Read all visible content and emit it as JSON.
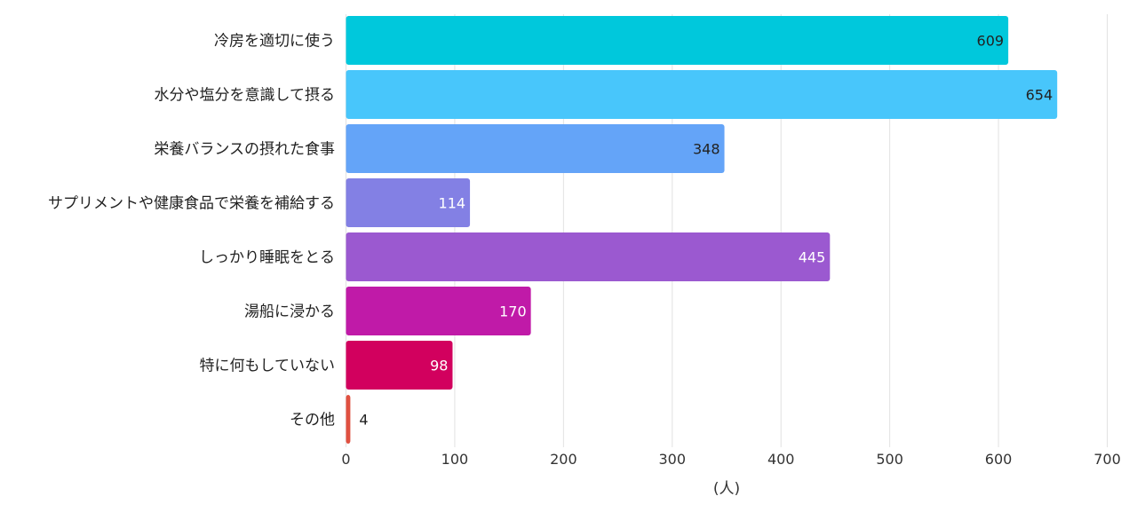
{
  "chart_data": {
    "type": "bar",
    "orientation": "horizontal",
    "categories": [
      "冷房を適切に使う",
      "水分や塩分を意識して摂る",
      "栄養バランスの摂れた食事",
      "サプリメントや健康食品で栄養を補給する",
      "しっかり睡眠をとる",
      "湯船に浸かる",
      "特に何もしていない",
      "その他"
    ],
    "values": [
      609,
      654,
      348,
      114,
      445,
      170,
      98,
      4
    ],
    "colors": [
      "#00c8dc",
      "#48c6fb",
      "#64a4f8",
      "#8380e4",
      "#9b59d0",
      "#c01aa8",
      "#d2005e",
      "#e05040"
    ],
    "value_label_colors": [
      "#222222",
      "#222222",
      "#222222",
      "#ffffff",
      "#ffffff",
      "#ffffff",
      "#ffffff",
      "#222222"
    ],
    "xlabel": "(人)",
    "xlim": [
      0,
      700
    ],
    "xticks": [
      0,
      100,
      200,
      300,
      400,
      500,
      600,
      700
    ],
    "grid": true
  }
}
